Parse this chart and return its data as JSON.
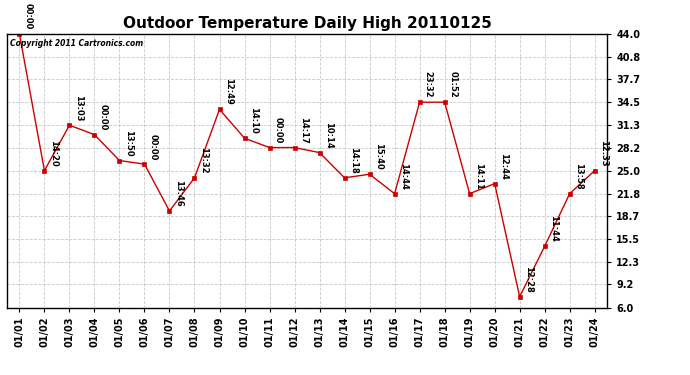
{
  "title": "Outdoor Temperature Daily High 20110125",
  "copyright_text": "Copyright 2011 Cartronics.com",
  "x_labels": [
    "01/01",
    "01/02",
    "01/03",
    "01/04",
    "01/05",
    "01/06",
    "01/07",
    "01/08",
    "01/09",
    "01/10",
    "01/11",
    "01/12",
    "01/13",
    "01/14",
    "01/15",
    "01/16",
    "01/17",
    "01/18",
    "01/19",
    "01/20",
    "01/21",
    "01/22",
    "01/23",
    "01/24"
  ],
  "y_values": [
    44.0,
    25.0,
    31.3,
    30.0,
    26.4,
    25.9,
    19.4,
    24.0,
    33.5,
    29.5,
    28.2,
    28.2,
    27.5,
    24.0,
    24.5,
    21.8,
    34.5,
    34.5,
    21.8,
    23.2,
    7.5,
    14.5,
    21.8,
    25.0
  ],
  "point_labels": [
    "00:00",
    "14:20",
    "13:03",
    "00:00",
    "13:50",
    "00:00",
    "13:46",
    "13:32",
    "12:49",
    "14:10",
    "00:00",
    "14:17",
    "10:14",
    "14:18",
    "15:40",
    "14:44",
    "23:32",
    "01:52",
    "14:11",
    "12:44",
    "12:28",
    "11:44",
    "13:58",
    "12:33"
  ],
  "y_ticks": [
    6.0,
    9.2,
    12.3,
    15.5,
    18.7,
    21.8,
    25.0,
    28.2,
    31.3,
    34.5,
    37.7,
    40.8,
    44.0
  ],
  "y_min": 6.0,
  "y_max": 44.0,
  "line_color": "#cc0000",
  "marker_color": "#cc0000",
  "background_color": "#ffffff",
  "grid_color": "#bbbbbb",
  "title_fontsize": 11,
  "label_fontsize": 7,
  "annotation_fontsize": 6
}
